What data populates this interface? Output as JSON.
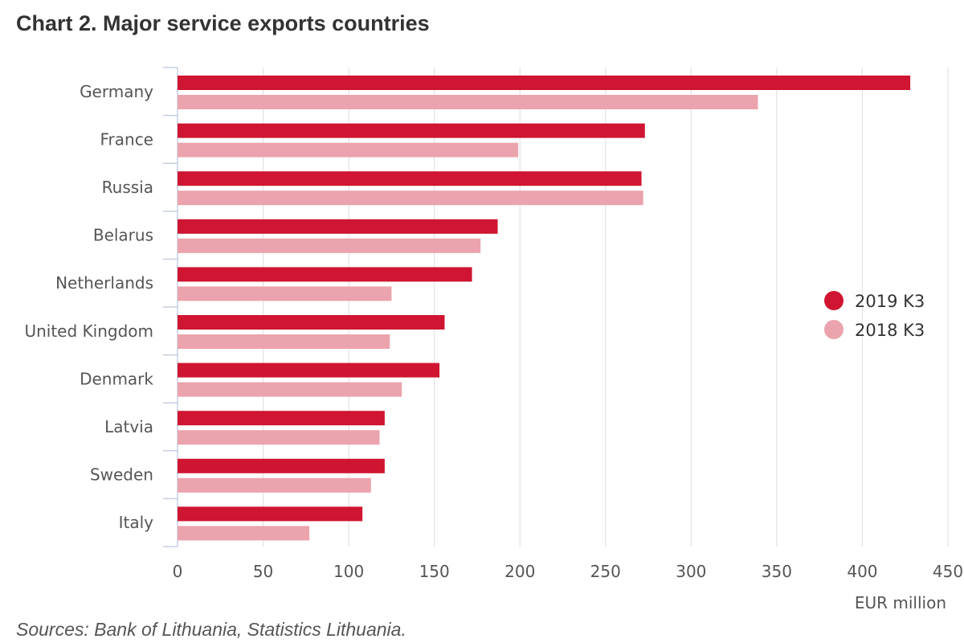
{
  "chart": {
    "title": "Chart 2. Major service exports countries",
    "source": "Sources: Bank of Lithuania, Statistics Lithuania."
  },
  "chart_data": {
    "type": "bar",
    "orientation": "horizontal",
    "title": "Chart 2. Major service exports countries",
    "xlabel": "EUR million",
    "ylabel": "",
    "categories": [
      "Germany",
      "France",
      "Russia",
      "Belarus",
      "Netherlands",
      "United Kingdom",
      "Denmark",
      "Latvia",
      "Sweden",
      "Italy"
    ],
    "series": [
      {
        "name": "2019 K3",
        "color": "#cf1531",
        "values": [
          428,
          273,
          271,
          187,
          172,
          156,
          153,
          121,
          121,
          108
        ]
      },
      {
        "name": "2018 K3",
        "color": "#eba3ad",
        "values": [
          339,
          199,
          272,
          177,
          125,
          124,
          131,
          118,
          113,
          77
        ]
      }
    ],
    "xlim": [
      0,
      450
    ],
    "xticks": [
      "0",
      "50",
      "100",
      "150",
      "200",
      "250",
      "300",
      "350",
      "400",
      "450"
    ],
    "grid": "vertical",
    "legend_position": "right"
  }
}
